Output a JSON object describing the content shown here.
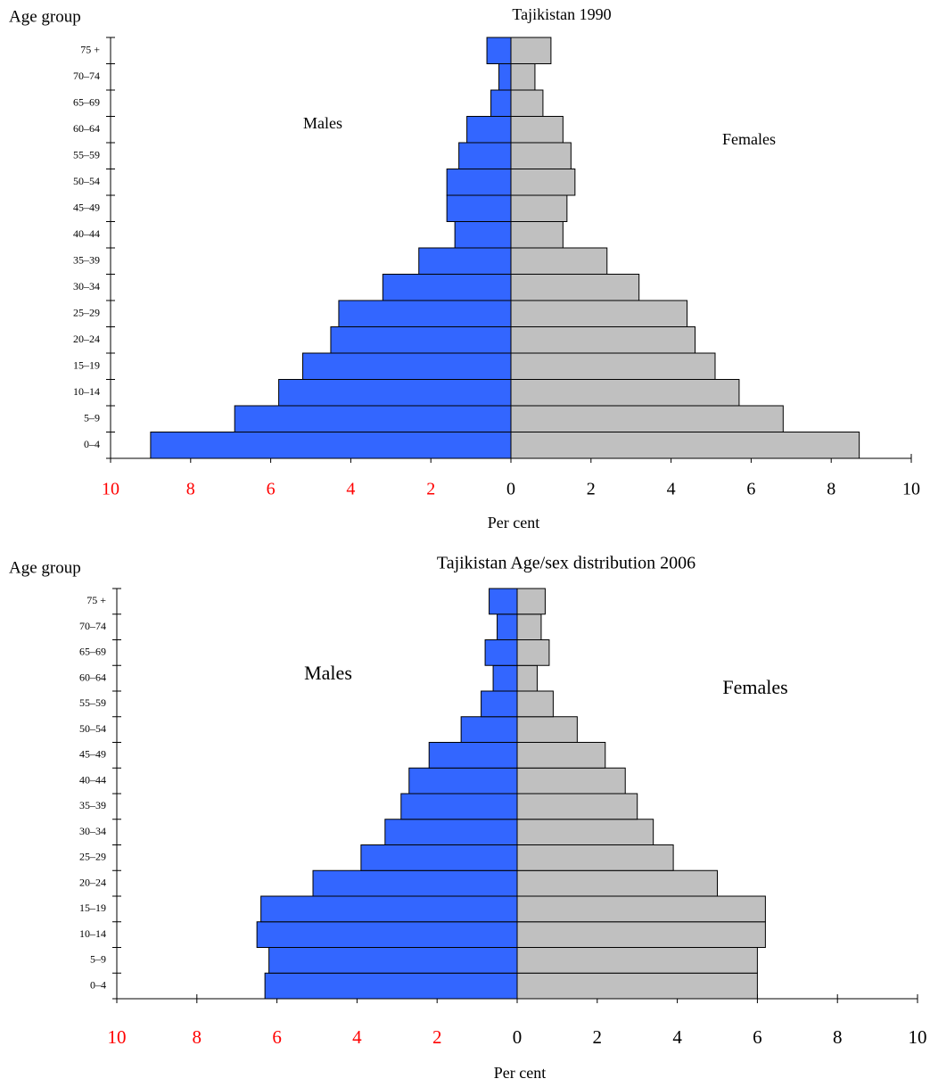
{
  "chart_data": [
    {
      "type": "pyramid",
      "title": "Tajikistan 1990",
      "xlabel": "Per cent",
      "ylabel": "Age group",
      "categories": [
        "0–4",
        "5–9",
        "10–14",
        "15–19",
        "20–24",
        "25–29",
        "30–34",
        "35–39",
        "40–44",
        "45–49",
        "50–54",
        "55–59",
        "60–64",
        "65–69",
        "70–74",
        "75 +"
      ],
      "series": [
        {
          "name": "Males",
          "color": "#3366ff",
          "values": [
            -9.0,
            -6.9,
            -5.8,
            -5.2,
            -4.5,
            -4.3,
            -3.2,
            -2.3,
            -1.4,
            -1.6,
            -1.6,
            -1.3,
            -1.1,
            -0.5,
            -0.3,
            -0.6
          ]
        },
        {
          "name": "Females",
          "color": "#c0c0c0",
          "values": [
            8.7,
            6.8,
            5.7,
            5.1,
            4.6,
            4.4,
            3.2,
            2.4,
            1.3,
            1.4,
            1.6,
            1.5,
            1.3,
            0.8,
            0.6,
            1.0
          ]
        }
      ],
      "xlim": [
        -10,
        10
      ],
      "xticks": [
        {
          "value": -10,
          "label": "10"
        },
        {
          "value": -8,
          "label": "8"
        },
        {
          "value": -6,
          "label": "6"
        },
        {
          "value": -4,
          "label": "4"
        },
        {
          "value": -2,
          "label": "2"
        },
        0,
        2,
        4,
        6,
        8,
        10
      ],
      "negative_tick_color": "#ff0000"
    },
    {
      "type": "pyramid",
      "title": "Tajikistan Age/sex distribution 2006",
      "xlabel": "Per cent",
      "ylabel": "Age group",
      "categories": [
        "0–4",
        "5–9",
        "10–14",
        "15–19",
        "20–24",
        "25–29",
        "30–34",
        "35–39",
        "40–44",
        "45–49",
        "50–54",
        "55–59",
        "60–64",
        "65–69",
        "70–74",
        "75 +"
      ],
      "series": [
        {
          "name": "Males",
          "color": "#3366ff",
          "values": [
            -6.3,
            -6.2,
            -6.5,
            -6.4,
            -5.1,
            -3.9,
            -3.3,
            -2.9,
            -2.7,
            -2.2,
            -1.4,
            -0.9,
            -0.6,
            -0.8,
            -0.5,
            -0.7
          ]
        },
        {
          "name": "Females",
          "color": "#c0c0c0",
          "values": [
            6.0,
            6.0,
            6.2,
            6.2,
            5.0,
            3.9,
            3.4,
            3.0,
            2.7,
            2.2,
            1.5,
            0.9,
            0.5,
            0.8,
            0.6,
            0.7
          ]
        }
      ],
      "xlim": [
        -10,
        10
      ],
      "xticks": [
        {
          "value": -10,
          "label": "10"
        },
        {
          "value": -8,
          "label": "8"
        },
        {
          "value": -6,
          "label": "6"
        },
        {
          "value": -4,
          "label": "4"
        },
        {
          "value": -2,
          "label": "2"
        },
        0,
        2,
        4,
        6,
        8,
        10
      ],
      "negative_tick_color": "#ff0000"
    }
  ]
}
